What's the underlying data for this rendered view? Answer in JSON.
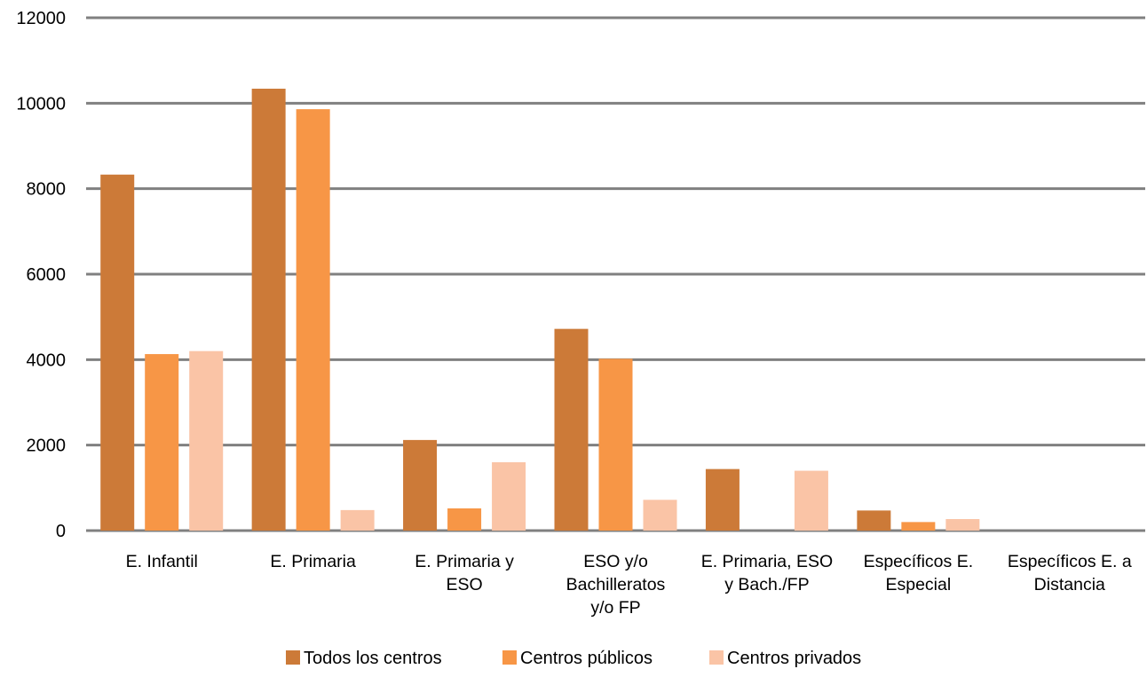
{
  "chart_data": {
    "type": "bar",
    "title": "",
    "xlabel": "",
    "ylabel": "",
    "ylim": [
      0,
      12000
    ],
    "yticks": [
      "0",
      "2000",
      "4000",
      "6000",
      "8000",
      "10000",
      "12000"
    ],
    "grid": true,
    "legend_position": "bottom",
    "categories": [
      "E. Infantil",
      "E. Primaria",
      "E. Primaria y ESO",
      "ESO y/o Bachilleratos y/o FP",
      "E. Primaria, ESO y Bach./FP",
      "Específicos E. Especial",
      "Específicos E. a Distancia"
    ],
    "category_lines": [
      [
        "E. Infantil"
      ],
      [
        "E. Primaria"
      ],
      [
        "E. Primaria y",
        "ESO"
      ],
      [
        "ESO y/o",
        "Bachilleratos",
        "y/o FP"
      ],
      [
        "E. Primaria, ESO",
        "y Bach./FP"
      ],
      [
        "Específicos E.",
        "Especial"
      ],
      [
        "Específicos E. a",
        "Distancia"
      ]
    ],
    "series": [
      {
        "name": "Todos los centros",
        "color": "#CC7A38",
        "values": [
          8330,
          10340,
          2120,
          4720,
          1440,
          470,
          0
        ]
      },
      {
        "name": "Centros públicos",
        "color": "#F79646",
        "values": [
          4130,
          9860,
          520,
          4020,
          0,
          200,
          0
        ]
      },
      {
        "name": "Centros privados",
        "color": "#FAC4A6",
        "values": [
          4200,
          480,
          1600,
          720,
          1400,
          270,
          0
        ]
      }
    ],
    "gridline_color": "#808080"
  }
}
